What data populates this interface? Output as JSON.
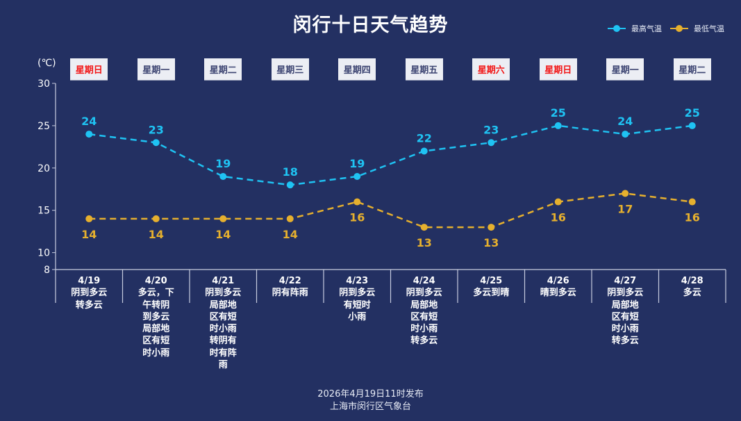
{
  "title": "闵行十日天气趋势",
  "legend": [
    {
      "name": "最高气温",
      "color": "#1fc3f3"
    },
    {
      "name": "最低气温",
      "color": "#e6b02e"
    }
  ],
  "unit": "(℃)",
  "footer": {
    "line1": "2026年4月19日11时发布",
    "line2": "上海市闵行区气象台"
  },
  "chart_data": {
    "type": "line",
    "title": "闵行十日天气趋势",
    "ylabel": "(℃)",
    "ylim": [
      8,
      30
    ],
    "yticks": [
      8,
      10,
      15,
      20,
      25,
      30
    ],
    "categories": [
      "4/19",
      "4/20",
      "4/21",
      "4/22",
      "4/23",
      "4/24",
      "4/25",
      "4/26",
      "4/27",
      "4/28"
    ],
    "weekdays": [
      "星期日",
      "星期一",
      "星期二",
      "星期三",
      "星期四",
      "星期五",
      "星期六",
      "星期日",
      "星期一",
      "星期二"
    ],
    "weekend": [
      true,
      false,
      false,
      false,
      false,
      false,
      true,
      true,
      false,
      false
    ],
    "weather": [
      [
        "阴到多云",
        "转多云"
      ],
      [
        "多云，下",
        "午转阴",
        "到多云",
        "局部地",
        "区有短",
        "时小雨"
      ],
      [
        "阴到多云",
        "局部地",
        "区有短",
        "时小雨",
        "转阴有",
        "时有阵",
        "雨"
      ],
      [
        "阴有阵雨"
      ],
      [
        "阴到多云",
        "有短时",
        "小雨"
      ],
      [
        "阴到多云",
        "局部地",
        "区有短",
        "时小雨",
        "转多云"
      ],
      [
        "多云到晴"
      ],
      [
        "晴到多云"
      ],
      [
        "阴到多云",
        "局部地",
        "区有短",
        "时小雨",
        "转多云"
      ],
      [
        "多云"
      ]
    ],
    "series": [
      {
        "name": "最高气温",
        "color": "#1fc3f3",
        "values": [
          24,
          23,
          19,
          18,
          19,
          22,
          23,
          25,
          24,
          25
        ]
      },
      {
        "name": "最低气温",
        "color": "#e6b02e",
        "values": [
          14,
          14,
          14,
          14,
          16,
          13,
          13,
          16,
          17,
          16
        ]
      }
    ]
  }
}
